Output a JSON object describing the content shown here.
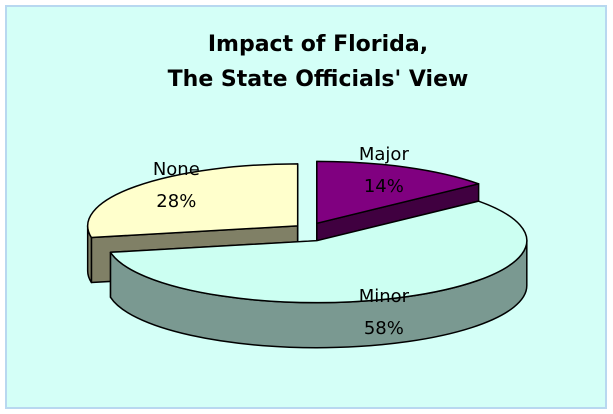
{
  "chart_data": {
    "type": "pie3d",
    "title": [
      "Impact of Florida,",
      "The State Officials' View"
    ],
    "categories": [
      "Major",
      "Minor",
      "None"
    ],
    "values": [
      14,
      58,
      28
    ],
    "value_labels": [
      "14%",
      "58%",
      "28%"
    ],
    "colors": [
      "#800080",
      "#ccfff2",
      "#ffffcc"
    ]
  }
}
